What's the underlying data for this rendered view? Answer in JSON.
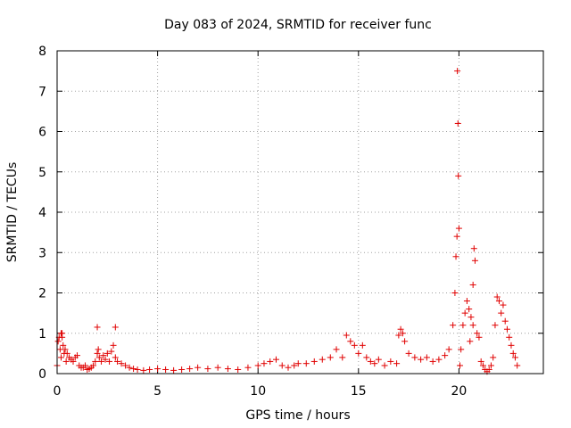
{
  "chart_data": {
    "type": "scatter",
    "title": "Day 083 of 2024, SRMTID for receiver func",
    "xlabel": "GPS time / hours",
    "ylabel": "SRMTID / TECUs",
    "xlim": [
      0,
      24.2
    ],
    "ylim": [
      0,
      8
    ],
    "xticks": [
      0,
      5,
      10,
      15,
      20
    ],
    "yticks": [
      0,
      1,
      2,
      3,
      4,
      5,
      6,
      7,
      8
    ],
    "grid": true,
    "marker": "plus",
    "series": [
      {
        "name": "SRMTID",
        "color": "#e00000",
        "x": [
          0.0,
          0.05,
          0.1,
          0.15,
          0.2,
          0.25,
          0.3,
          0.35,
          0.4,
          0.45,
          0.5,
          0.6,
          0.7,
          0.8,
          0.9,
          1.0,
          1.1,
          1.2,
          1.3,
          1.4,
          1.5,
          1.6,
          1.7,
          1.8,
          1.9,
          2.0,
          2.05,
          2.1,
          2.2,
          2.3,
          2.4,
          2.5,
          2.6,
          2.7,
          2.8,
          2.9,
          3.0,
          3.2,
          3.4,
          3.6,
          3.8,
          4.0,
          4.3,
          4.6,
          5.0,
          5.4,
          5.8,
          6.2,
          6.6,
          7.0,
          7.5,
          8.0,
          8.5,
          9.0,
          9.5,
          10.0,
          10.3,
          10.6,
          10.9,
          11.2,
          11.5,
          11.8,
          12.0,
          12.4,
          12.8,
          13.2,
          13.6,
          13.9,
          14.2,
          14.4,
          14.6,
          14.8,
          15.0,
          15.2,
          15.4,
          15.6,
          15.8,
          16.0,
          16.3,
          16.6,
          16.9,
          17.0,
          17.1,
          17.2,
          17.3,
          17.5,
          17.8,
          18.1,
          18.4,
          18.7,
          19.0,
          19.3,
          19.5,
          19.7,
          19.8,
          19.85,
          19.9,
          19.92,
          19.95,
          19.97,
          20.0,
          20.05,
          20.1,
          20.2,
          20.3,
          20.4,
          20.5,
          20.6,
          20.7,
          20.75,
          20.8,
          20.9,
          21.0,
          21.1,
          21.2,
          21.3,
          21.4,
          21.5,
          21.6,
          21.7,
          21.8,
          21.9,
          22.0,
          22.1,
          22.2,
          22.3,
          22.4,
          22.5,
          22.6,
          22.7,
          22.8,
          22.9,
          0.2,
          0.25,
          2.0,
          2.9,
          20.55,
          20.7
        ],
        "y": [
          0.2,
          0.8,
          0.9,
          0.6,
          0.4,
          1.0,
          0.7,
          0.5,
          0.6,
          0.3,
          0.5,
          0.4,
          0.35,
          0.3,
          0.4,
          0.45,
          0.2,
          0.15,
          0.15,
          0.2,
          0.1,
          0.12,
          0.15,
          0.2,
          0.3,
          0.5,
          0.6,
          0.4,
          0.3,
          0.45,
          0.35,
          0.5,
          0.3,
          0.55,
          0.7,
          0.4,
          0.3,
          0.25,
          0.2,
          0.15,
          0.12,
          0.1,
          0.08,
          0.1,
          0.12,
          0.1,
          0.08,
          0.1,
          0.12,
          0.15,
          0.12,
          0.15,
          0.12,
          0.1,
          0.15,
          0.2,
          0.25,
          0.3,
          0.35,
          0.2,
          0.15,
          0.2,
          0.25,
          0.25,
          0.3,
          0.35,
          0.4,
          0.6,
          0.4,
          0.95,
          0.8,
          0.7,
          0.5,
          0.7,
          0.4,
          0.3,
          0.25,
          0.35,
          0.2,
          0.3,
          0.25,
          0.95,
          1.1,
          1.0,
          0.8,
          0.5,
          0.4,
          0.35,
          0.4,
          0.3,
          0.35,
          0.45,
          0.6,
          1.2,
          2.0,
          2.9,
          3.4,
          7.5,
          6.2,
          4.9,
          3.6,
          0.2,
          0.6,
          1.2,
          1.5,
          1.8,
          1.6,
          1.4,
          1.2,
          3.1,
          2.8,
          1.0,
          0.9,
          0.3,
          0.2,
          0.1,
          0.05,
          0.1,
          0.2,
          0.4,
          1.2,
          1.9,
          1.8,
          1.5,
          1.7,
          1.3,
          1.1,
          0.9,
          0.7,
          0.5,
          0.4,
          0.2,
          1.0,
          0.9,
          1.15,
          1.15,
          0.8,
          2.2
        ]
      }
    ]
  }
}
